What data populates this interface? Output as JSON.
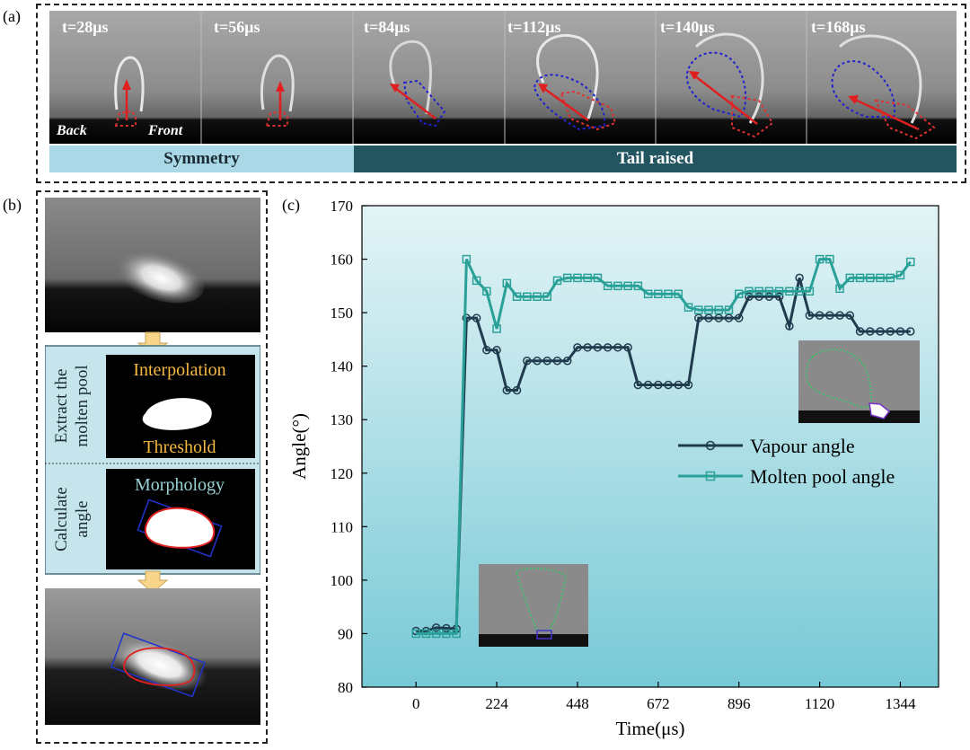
{
  "panel_a": {
    "label": "(a)",
    "frames": [
      "t=28μs",
      "t=56μs",
      "t=84μs",
      "t=112μs",
      "t=140μs",
      "t=168μs"
    ],
    "back_label": "Back",
    "front_label": "Front",
    "band_symmetry": "Symmetry",
    "band_tail": "Tail raised",
    "band_colors": {
      "symmetry": "#aad8e6",
      "tail": "#22555f"
    }
  },
  "panel_b": {
    "label": "(b)",
    "extract_label": "Extract the molten pool",
    "extract_line1": "Extract the",
    "extract_line2": "molten pool",
    "interpolation": "Interpolation",
    "threshold": "Threshold",
    "calculate_line1": "Calculate",
    "calculate_line2": "angle",
    "morphology": "Morphology"
  },
  "panel_c": {
    "label": "(c)"
  },
  "colors": {
    "vapour": "#1f3b4d",
    "molten": "#2aa198",
    "plot_bg_top": "#e4f4f6",
    "plot_bg_bottom": "#77c9d6",
    "orange_text": "#f5b942",
    "teal_text": "#9ad3d6"
  },
  "chart_data": {
    "type": "line",
    "xlabel": "Time(μs)",
    "ylabel": "Angle(°)",
    "xlim": [
      -150,
      1450
    ],
    "ylim": [
      80,
      170
    ],
    "xticks": [
      0,
      224,
      448,
      672,
      896,
      1120,
      1344
    ],
    "yticks": [
      80,
      90,
      100,
      110,
      120,
      130,
      140,
      150,
      160,
      170
    ],
    "legend_position": "right",
    "series": [
      {
        "name": "Vapour angle",
        "marker": "circle",
        "x": [
          0,
          28,
          56,
          84,
          112,
          140,
          168,
          196,
          224,
          252,
          280,
          308,
          336,
          364,
          392,
          420,
          448,
          476,
          504,
          532,
          560,
          588,
          616,
          644,
          672,
          700,
          728,
          756,
          784,
          812,
          840,
          868,
          896,
          924,
          952,
          980,
          1008,
          1036,
          1064,
          1092,
          1120,
          1148,
          1176,
          1204,
          1232,
          1260,
          1288,
          1316,
          1344,
          1372
        ],
        "values": [
          90.5,
          90.5,
          91.1,
          91.0,
          90.9,
          149.0,
          149.0,
          143.0,
          143.0,
          135.5,
          135.5,
          141.0,
          141.0,
          141.0,
          141.0,
          141.0,
          143.5,
          143.5,
          143.5,
          143.5,
          143.5,
          143.5,
          136.5,
          136.5,
          136.5,
          136.5,
          136.5,
          136.5,
          149.0,
          149.0,
          149.0,
          149.0,
          149.0,
          153.0,
          153.0,
          153.0,
          153.0,
          147.5,
          156.5,
          149.5,
          149.5,
          149.5,
          149.5,
          149.5,
          146.5,
          146.5,
          146.5,
          146.5,
          146.5,
          146.5
        ]
      },
      {
        "name": "Molten pool angle",
        "marker": "square",
        "x": [
          0,
          28,
          56,
          84,
          112,
          140,
          168,
          196,
          224,
          252,
          280,
          308,
          336,
          364,
          392,
          420,
          448,
          476,
          504,
          532,
          560,
          588,
          616,
          644,
          672,
          700,
          728,
          756,
          784,
          812,
          840,
          868,
          896,
          924,
          952,
          980,
          1008,
          1036,
          1064,
          1092,
          1120,
          1148,
          1176,
          1204,
          1232,
          1260,
          1288,
          1316,
          1344,
          1372
        ],
        "values": [
          90.0,
          90.0,
          90.0,
          90.0,
          90.0,
          160.0,
          156.0,
          154.0,
          147.0,
          155.5,
          153.0,
          153.0,
          153.0,
          153.0,
          156.0,
          156.5,
          156.5,
          156.5,
          156.5,
          155.0,
          155.0,
          155.0,
          155.0,
          153.5,
          153.5,
          153.5,
          153.5,
          151.0,
          150.5,
          150.5,
          150.5,
          150.5,
          153.5,
          154.0,
          154.0,
          154.0,
          154.0,
          154.0,
          154.0,
          154.0,
          160.0,
          160.0,
          154.5,
          156.5,
          156.5,
          156.5,
          156.5,
          156.5,
          157.0,
          159.5
        ]
      }
    ]
  }
}
